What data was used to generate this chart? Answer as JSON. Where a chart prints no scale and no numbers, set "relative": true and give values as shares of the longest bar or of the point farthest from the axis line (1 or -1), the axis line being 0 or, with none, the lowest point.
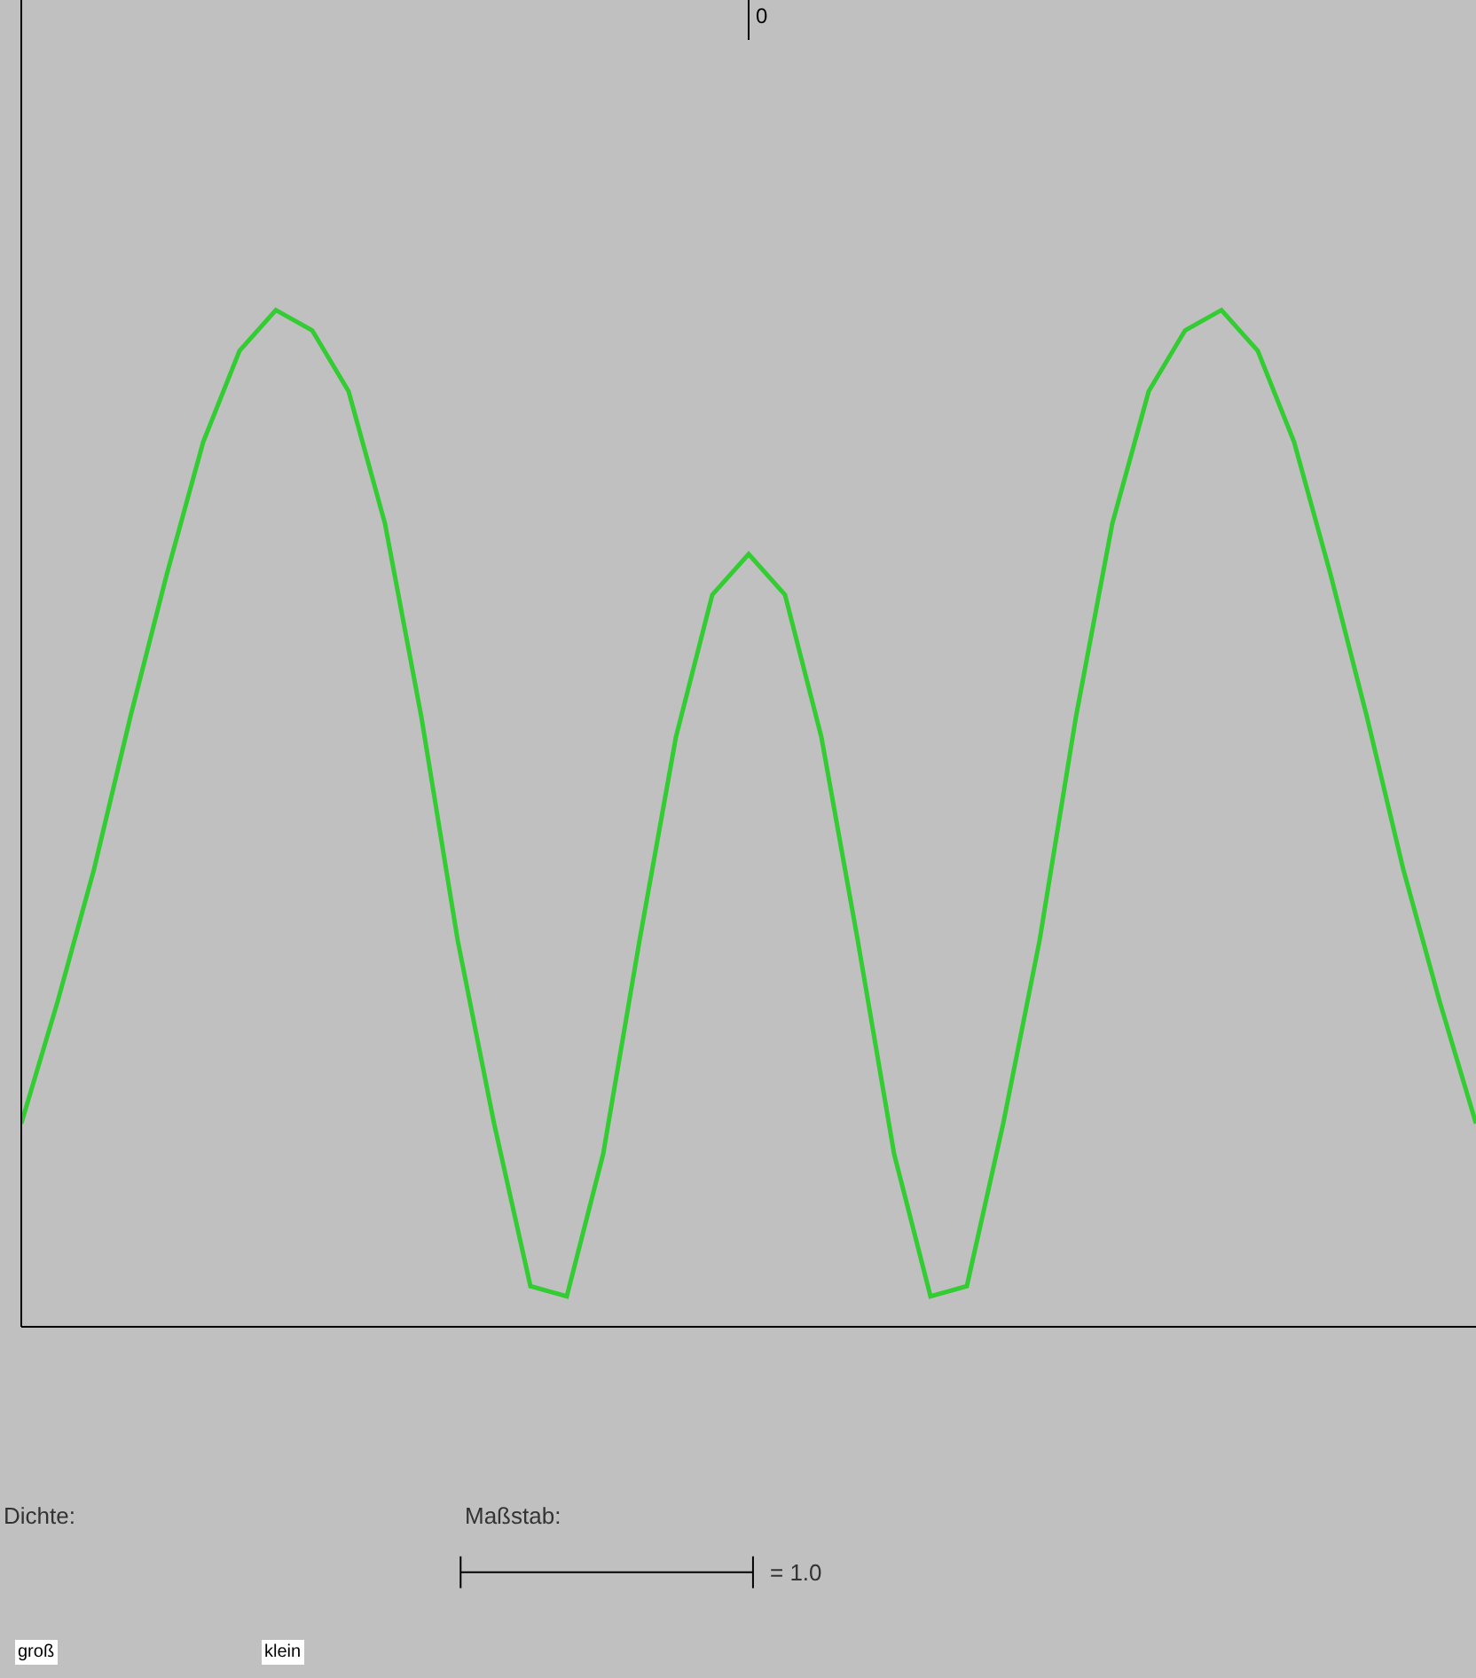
{
  "chart_data": {
    "type": "line",
    "relative": true,
    "categories": [
      null,
      null,
      null,
      null,
      null,
      null,
      null,
      null,
      null,
      null,
      null,
      null,
      null,
      null,
      null,
      null,
      null,
      null,
      null,
      null,
      null,
      null,
      null,
      null,
      null,
      null,
      null,
      null,
      null,
      null,
      null,
      null,
      null,
      null,
      null,
      null,
      null,
      null,
      null,
      null,
      null
    ],
    "series": [
      {
        "color": "#33cc33",
        "values": [
          0.2,
          0.32,
          0.45,
          0.6,
          0.74,
          0.87,
          0.96,
          1.0,
          0.98,
          0.92,
          0.79,
          0.6,
          0.38,
          0.2,
          0.04,
          0.03,
          0.17,
          0.38,
          0.58,
          0.72,
          0.76,
          0.72,
          0.58,
          0.38,
          0.17,
          0.03,
          0.04,
          0.2,
          0.38,
          0.6,
          0.79,
          0.92,
          0.98,
          1.0,
          0.96,
          0.87,
          0.74,
          0.6,
          0.45,
          0.32,
          0.2
        ]
      }
    ],
    "annotations": [
      "Maßstab:",
      "= 1.0",
      "0",
      "Dichte:",
      "groß",
      "klein"
    ]
  }
}
